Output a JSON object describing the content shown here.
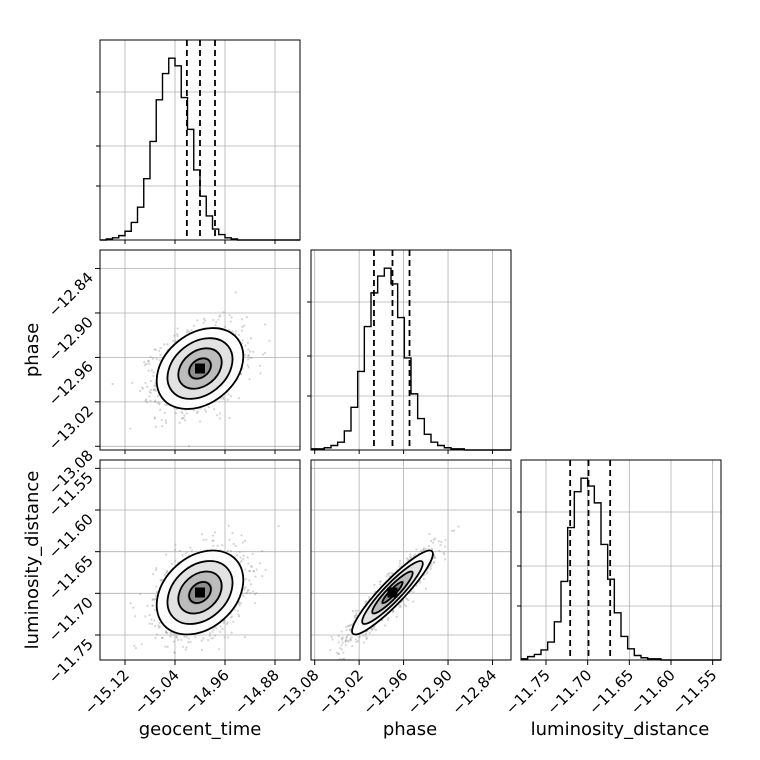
{
  "chart_data": {
    "type": "corner",
    "parameters": [
      {
        "name": "geocent_time",
        "label": "geocent_time",
        "range": [
          -15.16,
          -14.84
        ],
        "ticks": [
          "−15.12",
          "−15.04",
          "−14.96",
          "−14.88"
        ],
        "tick_values": [
          -15.12,
          -15.04,
          -14.96,
          -14.88
        ],
        "quantiles": [
          -15.021,
          -15.0,
          -14.976
        ]
      },
      {
        "name": "phase",
        "label": "phase",
        "range": [
          -13.085,
          -12.815
        ],
        "ticks": [
          "−13.08",
          "−13.02",
          "−12.96",
          "−12.90",
          "−12.84"
        ],
        "tick_values": [
          -13.08,
          -13.02,
          -12.96,
          -12.9,
          -12.84
        ],
        "quantiles": [
          -13.0,
          -12.975,
          -12.952
        ]
      },
      {
        "name": "luminosity_distance",
        "label": "luminosity_distance",
        "range": [
          -11.78,
          -11.54
        ],
        "ticks": [
          "−11.75",
          "−11.70",
          "−11.65",
          "−11.60",
          "−11.55"
        ],
        "tick_values": [
          -11.75,
          -11.7,
          -11.65,
          -11.6,
          -11.55
        ],
        "quantiles": [
          -11.721,
          -11.699,
          -11.673
        ]
      }
    ],
    "histograms": [
      {
        "param": "geocent_time",
        "bin_edges_start": -15.16,
        "bin_width": 0.01,
        "counts": [
          0,
          1,
          2,
          4,
          8,
          16,
          30,
          56,
          90,
          128,
          152,
          166,
          159,
          130,
          101,
          64,
          40,
          22,
          10,
          5,
          2,
          1,
          0,
          0,
          0,
          0,
          0,
          0,
          0,
          0,
          0,
          0
        ]
      },
      {
        "param": "phase",
        "bin_edges_start": -13.085,
        "bin_width": 0.009,
        "counts": [
          1,
          1,
          2,
          4,
          7,
          17,
          38,
          70,
          110,
          140,
          155,
          162,
          148,
          118,
          82,
          50,
          28,
          14,
          7,
          4,
          2,
          1,
          1,
          0,
          0,
          0,
          0,
          0,
          0,
          0
        ]
      },
      {
        "param": "luminosity_distance",
        "bin_edges_start": -11.78,
        "bin_width": 0.008,
        "counts": [
          1,
          3,
          5,
          9,
          16,
          34,
          70,
          118,
          150,
          162,
          155,
          140,
          103,
          72,
          42,
          21,
          10,
          4,
          2,
          1,
          1,
          0,
          0,
          0,
          0,
          0,
          0,
          0,
          0,
          0
        ]
      }
    ],
    "joint": [
      {
        "x": "geocent_time",
        "y": "phase",
        "mean": [
          -15.0,
          -12.975
        ],
        "std": [
          0.033,
          0.026
        ],
        "corr": 0.3
      },
      {
        "x": "geocent_time",
        "y": "luminosity_distance",
        "mean": [
          -15.0,
          -11.699
        ],
        "std": [
          0.033,
          0.024
        ],
        "corr": 0.3
      },
      {
        "x": "phase",
        "y": "luminosity_distance",
        "mean": [
          -12.975,
          -11.699
        ],
        "std": [
          0.026,
          0.024
        ],
        "corr": 0.92
      }
    ],
    "contour_levels_sigma": [
      0.5,
      1.0,
      1.5,
      2.0
    ],
    "grid": true,
    "quantile_lines": "dashed"
  }
}
